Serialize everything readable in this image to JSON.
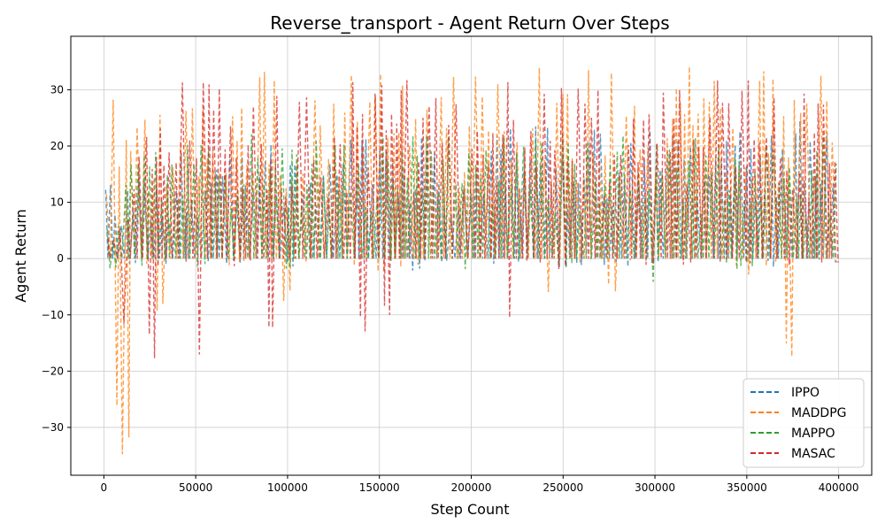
{
  "chart_data": {
    "type": "line",
    "title": "Reverse_transport - Agent Return Over Steps",
    "xlabel": "Step Count",
    "ylabel": "Agent Return",
    "xlim": [
      -18000,
      418000
    ],
    "ylim": [
      -38.5,
      39.5
    ],
    "xticks": [
      0,
      50000,
      100000,
      150000,
      200000,
      250000,
      300000,
      350000,
      400000
    ],
    "yticks": [
      -30,
      -20,
      -10,
      0,
      10,
      20,
      30
    ],
    "grid": true,
    "legend_position": "lower-right",
    "line_style": "dashed",
    "x_range": [
      1000,
      400000
    ],
    "series": [
      {
        "name": "IPPO",
        "color": "#1f77b4",
        "peaks": [
          [
            15000,
            15
          ],
          [
            50000,
            20
          ],
          [
            100000,
            22
          ],
          [
            150000,
            22
          ],
          [
            200000,
            23
          ],
          [
            250000,
            24
          ],
          [
            300000,
            24
          ],
          [
            350000,
            24
          ],
          [
            400000,
            25
          ]
        ],
        "troughs": [
          [
            15000,
            -1
          ],
          [
            100000,
            -1
          ],
          [
            170000,
            -2.5
          ],
          [
            250000,
            -2
          ],
          [
            300000,
            -1
          ],
          [
            400000,
            -1
          ]
        ]
      },
      {
        "name": "MADDPG",
        "color": "#ff7f0e",
        "peaks": [
          [
            0,
            27
          ],
          [
            15000,
            34
          ],
          [
            50000,
            34
          ],
          [
            100000,
            33
          ],
          [
            150000,
            33
          ],
          [
            200000,
            34
          ],
          [
            250000,
            35
          ],
          [
            300000,
            34
          ],
          [
            350000,
            35
          ],
          [
            400000,
            35
          ]
        ],
        "troughs": [
          [
            0,
            -32
          ],
          [
            8000,
            -35
          ],
          [
            12000,
            -34
          ],
          [
            30000,
            -10
          ],
          [
            100000,
            -9
          ],
          [
            150000,
            -3
          ],
          [
            242000,
            -6.5
          ],
          [
            276000,
            -6
          ],
          [
            352000,
            -4.5
          ],
          [
            374000,
            -20.5
          ],
          [
            400000,
            -1
          ]
        ]
      },
      {
        "name": "MAPPO",
        "color": "#2ca02c",
        "peaks": [
          [
            5000,
            8
          ],
          [
            20000,
            22
          ],
          [
            50000,
            20
          ],
          [
            100000,
            24
          ],
          [
            150000,
            22
          ],
          [
            200000,
            22
          ],
          [
            250000,
            22
          ],
          [
            300000,
            22
          ],
          [
            350000,
            22
          ],
          [
            400000,
            22
          ]
        ],
        "troughs": [
          [
            5000,
            -2
          ],
          [
            50000,
            -2
          ],
          [
            100000,
            -2
          ],
          [
            198000,
            -2.5
          ],
          [
            250000,
            -2
          ],
          [
            298000,
            -4.5
          ],
          [
            345000,
            -2
          ],
          [
            400000,
            -1
          ]
        ]
      },
      {
        "name": "MASAC",
        "color": "#d62728",
        "peaks": [
          [
            0,
            2
          ],
          [
            20000,
            20
          ],
          [
            40000,
            32
          ],
          [
            100000,
            31
          ],
          [
            150000,
            32
          ],
          [
            200000,
            32
          ],
          [
            250000,
            32
          ],
          [
            300000,
            31
          ],
          [
            350000,
            33
          ],
          [
            400000,
            30
          ]
        ],
        "troughs": [
          [
            0,
            -4
          ],
          [
            10000,
            -14
          ],
          [
            27000,
            -20
          ],
          [
            51000,
            -22
          ],
          [
            90000,
            -16
          ],
          [
            140000,
            -13
          ],
          [
            154000,
            -13
          ],
          [
            222000,
            -16
          ],
          [
            250000,
            -2
          ],
          [
            300000,
            -1
          ],
          [
            350000,
            -1
          ],
          [
            400000,
            -1
          ]
        ]
      }
    ]
  }
}
